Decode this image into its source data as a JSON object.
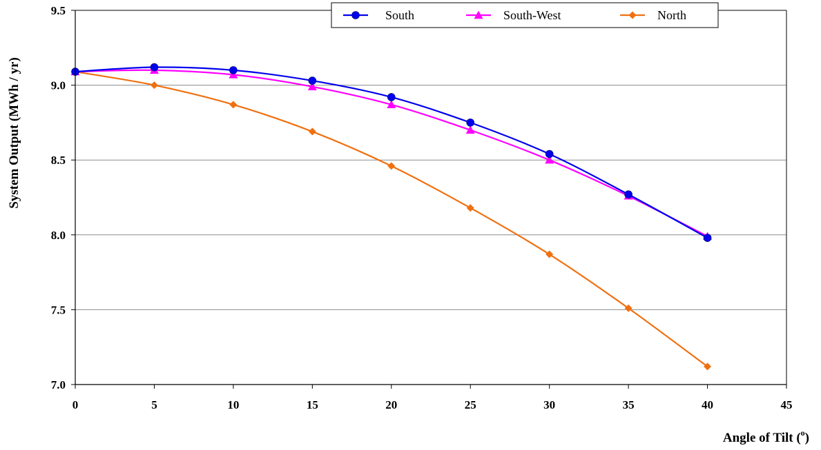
{
  "chart_data": {
    "type": "line",
    "xlabel": "Angle of Tilt (",
    "xlabel_sup": "o",
    "xlabel_close": ")",
    "ylabel": "System Output (MWh / yr)",
    "xlim": [
      0,
      45
    ],
    "ylim": [
      7.0,
      9.5
    ],
    "xticks": [
      0,
      5,
      10,
      15,
      20,
      25,
      30,
      35,
      40,
      45
    ],
    "yticks": [
      7.0,
      7.5,
      8.0,
      8.5,
      9.0,
      9.5
    ],
    "ytick_labels": [
      "7.0",
      "7.5",
      "8.0",
      "8.5",
      "9.0",
      "9.5"
    ],
    "grid": "horizontal",
    "legend_position": "top-right",
    "x": [
      0,
      5,
      10,
      15,
      20,
      25,
      30,
      35,
      40
    ],
    "series": [
      {
        "name": "South",
        "color": "#0000ee",
        "marker": "circle",
        "values": [
          9.09,
          9.12,
          9.1,
          9.03,
          8.92,
          8.75,
          8.54,
          8.27,
          7.98
        ]
      },
      {
        "name": "South-West",
        "color": "#ff00ff",
        "marker": "triangle",
        "values": [
          9.09,
          9.1,
          9.07,
          8.99,
          8.87,
          8.7,
          8.5,
          8.26,
          7.99
        ]
      },
      {
        "name": "North",
        "color": "#f07010",
        "marker": "diamond",
        "values": [
          9.09,
          9.0,
          8.87,
          8.69,
          8.46,
          8.18,
          7.87,
          7.51,
          7.12
        ]
      }
    ]
  }
}
